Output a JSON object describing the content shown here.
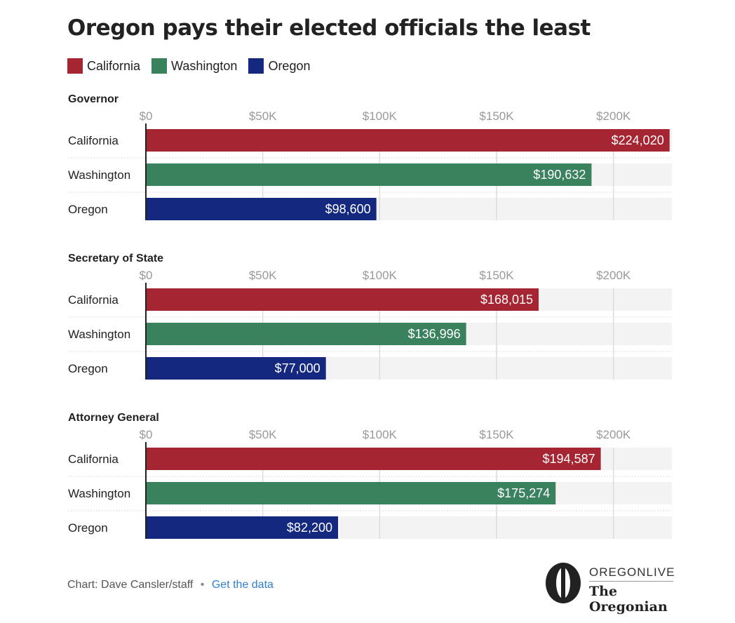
{
  "title": "Oregon pays their elected officials the least",
  "legend": [
    {
      "label": "California",
      "color": "#a52632"
    },
    {
      "label": "Washington",
      "color": "#3a815d"
    },
    {
      "label": "Oregon",
      "color": "#13287e"
    }
  ],
  "chart_data": [
    {
      "type": "bar",
      "title": "Governor",
      "categories": [
        "California",
        "Washington",
        "Oregon"
      ],
      "values": [
        224020,
        190632,
        98600
      ],
      "value_labels": [
        "$224,020",
        "$190,632",
        "$98,600"
      ],
      "ticks": [
        "$0",
        "$50K",
        "$100K",
        "$150K",
        "$200K"
      ],
      "tick_values": [
        0,
        50000,
        100000,
        150000,
        200000
      ],
      "xlim": [
        0,
        225000
      ],
      "grid": true
    },
    {
      "type": "bar",
      "title": "Secretary of State",
      "categories": [
        "California",
        "Washington",
        "Oregon"
      ],
      "values": [
        168015,
        136996,
        77000
      ],
      "value_labels": [
        "$168,015",
        "$136,996",
        "$77,000"
      ],
      "ticks": [
        "$0",
        "$50K",
        "$100K",
        "$150K",
        "$200K"
      ],
      "tick_values": [
        0,
        50000,
        100000,
        150000,
        200000
      ],
      "xlim": [
        0,
        225000
      ],
      "grid": true
    },
    {
      "type": "bar",
      "title": "Attorney General",
      "categories": [
        "California",
        "Washington",
        "Oregon"
      ],
      "values": [
        194587,
        175274,
        82200
      ],
      "value_labels": [
        "$194,587",
        "$175,274",
        "$82,200"
      ],
      "ticks": [
        "$0",
        "$50K",
        "$100K",
        "$150K",
        "$200K"
      ],
      "tick_values": [
        0,
        50000,
        100000,
        150000,
        200000
      ],
      "xlim": [
        0,
        225000
      ],
      "grid": true
    }
  ],
  "footer": {
    "credit": "Chart: Dave Cansler/staff",
    "separator": "•",
    "link": "Get the data"
  },
  "logo": {
    "top": "OREGONLIVE",
    "bottom": "The Oregonian",
    "mark": "O"
  }
}
